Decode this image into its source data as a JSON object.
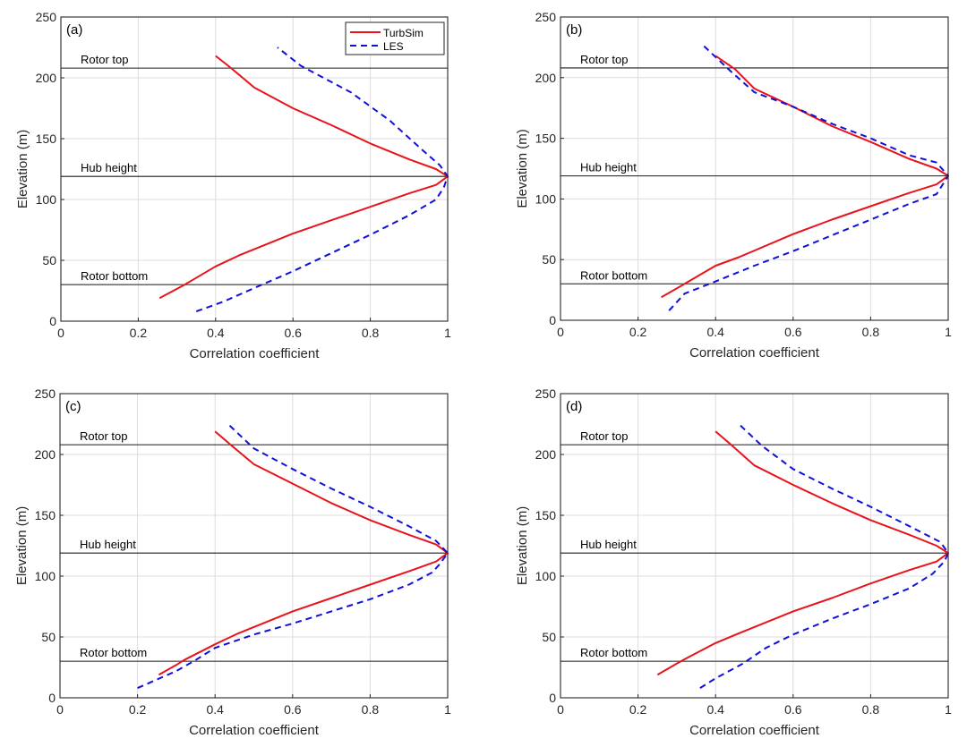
{
  "chart_data": [
    {
      "type": "line",
      "panel_label": "(a)",
      "xlabel": "Correlation  coefficient",
      "ylabel": "Elevation (m)",
      "xlim": [
        0,
        1
      ],
      "ylim": [
        0,
        250
      ],
      "xticks": [
        0,
        0.2,
        0.4,
        0.6,
        0.8,
        1
      ],
      "xtick_labels": [
        "0",
        "0.2",
        "0.4",
        "0.6",
        "0.8",
        "1"
      ],
      "yticks": [
        0,
        50,
        100,
        150,
        200,
        250
      ],
      "ytick_labels": [
        "0",
        "50",
        "100",
        "150",
        "200",
        "250"
      ],
      "grid": true,
      "legend": {
        "show": true,
        "placement": "top-right",
        "entries": [
          "TurbSim",
          "LES"
        ]
      },
      "reference_lines": [
        {
          "label": "Rotor top",
          "y": 208
        },
        {
          "label": "Hub height",
          "y": 119
        },
        {
          "label": "Rotor bottom",
          "y": 30
        }
      ],
      "series": [
        {
          "name": "TurbSim",
          "color": "#e8131b",
          "style": "solid",
          "x": [
            0.255,
            0.32,
            0.4,
            0.46,
            0.6,
            0.7,
            0.8,
            0.9,
            0.97,
            1.0,
            0.97,
            0.9,
            0.8,
            0.7,
            0.6,
            0.5,
            0.44,
            0.4
          ],
          "y": [
            19,
            30,
            45,
            54,
            72,
            83,
            94,
            105,
            112,
            119,
            125,
            133,
            146,
            161,
            175,
            192,
            208,
            218
          ]
        },
        {
          "name": "LES",
          "color": "#1010d8",
          "style": "dashed",
          "x": [
            0.35,
            0.42,
            0.52,
            0.6,
            0.7,
            0.8,
            0.9,
            0.97,
            0.99,
            1.0,
            0.98,
            0.93,
            0.85,
            0.75,
            0.62,
            0.56
          ],
          "y": [
            8,
            16,
            30,
            41,
            56,
            71,
            87,
            100,
            110,
            119,
            128,
            142,
            165,
            188,
            210,
            225
          ]
        }
      ]
    },
    {
      "type": "line",
      "panel_label": "(b)",
      "xlabel": "Correlation  coefficient",
      "ylabel": "Elevation (m)",
      "xlim": [
        0,
        1
      ],
      "ylim": [
        0,
        250
      ],
      "xticks": [
        0,
        0.2,
        0.4,
        0.6,
        0.8,
        1
      ],
      "xtick_labels": [
        "0",
        "0.2",
        "0.4",
        "0.6",
        "0.8",
        "1"
      ],
      "yticks": [
        0,
        50,
        100,
        150,
        200,
        250
      ],
      "ytick_labels": [
        "0",
        "50",
        "100",
        "150",
        "200",
        "250"
      ],
      "grid": true,
      "legend": {
        "show": false
      },
      "reference_lines": [
        {
          "label": "Rotor top",
          "y": 208
        },
        {
          "label": "Hub height",
          "y": 119
        },
        {
          "label": "Rotor bottom",
          "y": 30
        }
      ],
      "series": [
        {
          "name": "TurbSim",
          "color": "#e8131b",
          "style": "solid",
          "x": [
            0.26,
            0.32,
            0.4,
            0.46,
            0.6,
            0.7,
            0.8,
            0.9,
            0.97,
            1.0,
            0.97,
            0.9,
            0.8,
            0.7,
            0.6,
            0.5,
            0.45,
            0.4
          ],
          "y": [
            19,
            30,
            45,
            52,
            71,
            83,
            94,
            105,
            112,
            119,
            125,
            133,
            147,
            160,
            176,
            191,
            207,
            218
          ]
        },
        {
          "name": "LES",
          "color": "#1010d8",
          "style": "dashed",
          "x": [
            0.28,
            0.32,
            0.4,
            0.5,
            0.6,
            0.7,
            0.8,
            0.9,
            0.97,
            1.0,
            0.97,
            0.9,
            0.8,
            0.7,
            0.6,
            0.5,
            0.44,
            0.37
          ],
          "y": [
            8,
            22,
            32,
            45,
            57,
            70,
            83,
            96,
            104,
            119,
            130,
            136,
            150,
            162,
            176,
            188,
            205,
            226
          ]
        }
      ]
    },
    {
      "type": "line",
      "panel_label": "(c)",
      "xlabel": "Correlation  coefficient",
      "ylabel": "Elevation (m)",
      "xlim": [
        0,
        1
      ],
      "ylim": [
        0,
        250
      ],
      "xticks": [
        0,
        0.2,
        0.4,
        0.6,
        0.8,
        1
      ],
      "xtick_labels": [
        "0",
        "0.2",
        "0.4",
        "0.6",
        "0.8",
        "1"
      ],
      "yticks": [
        0,
        50,
        100,
        150,
        200,
        250
      ],
      "ytick_labels": [
        "0",
        "50",
        "100",
        "150",
        "200",
        "250"
      ],
      "grid": true,
      "legend": {
        "show": false
      },
      "reference_lines": [
        {
          "label": "Rotor top",
          "y": 208
        },
        {
          "label": "Hub height",
          "y": 119
        },
        {
          "label": "Rotor bottom",
          "y": 30
        }
      ],
      "series": [
        {
          "name": "TurbSim",
          "color": "#e8131b",
          "style": "solid",
          "x": [
            0.255,
            0.3,
            0.32,
            0.4,
            0.46,
            0.6,
            0.7,
            0.8,
            0.9,
            0.97,
            1.0,
            0.97,
            0.9,
            0.8,
            0.7,
            0.6,
            0.5,
            0.44,
            0.4
          ],
          "y": [
            19,
            27,
            31,
            44,
            53,
            71,
            82,
            93,
            104,
            112,
            119,
            126,
            134,
            146,
            160,
            176,
            192,
            208,
            219
          ]
        },
        {
          "name": "LES",
          "color": "#1010d8",
          "style": "dashed",
          "x": [
            0.2,
            0.3,
            0.35,
            0.4,
            0.5,
            0.6,
            0.7,
            0.8,
            0.9,
            0.96,
            0.98,
            1.0,
            0.97,
            0.9,
            0.8,
            0.7,
            0.6,
            0.5,
            0.43
          ],
          "y": [
            8,
            22,
            31,
            41,
            52,
            61,
            71,
            81,
            93,
            103,
            110,
            119,
            129,
            141,
            157,
            172,
            188,
            205,
            226
          ]
        }
      ]
    },
    {
      "type": "line",
      "panel_label": "(d)",
      "xlabel": "Correlation  coefficient",
      "ylabel": "Elevation (m)",
      "xlim": [
        0,
        1
      ],
      "ylim": [
        0,
        250
      ],
      "xticks": [
        0,
        0.2,
        0.4,
        0.6,
        0.8,
        1
      ],
      "xtick_labels": [
        "0",
        "0.2",
        "0.4",
        "0.6",
        "0.8",
        "1"
      ],
      "yticks": [
        0,
        50,
        100,
        150,
        200,
        250
      ],
      "ytick_labels": [
        "0",
        "50",
        "100",
        "150",
        "200",
        "250"
      ],
      "grid": true,
      "legend": {
        "show": false
      },
      "reference_lines": [
        {
          "label": "Rotor top",
          "y": 208
        },
        {
          "label": "Hub height",
          "y": 119
        },
        {
          "label": "Rotor bottom",
          "y": 30
        }
      ],
      "series": [
        {
          "name": "TurbSim",
          "color": "#e8131b",
          "style": "solid",
          "x": [
            0.25,
            0.31,
            0.4,
            0.46,
            0.6,
            0.7,
            0.8,
            0.9,
            0.97,
            1.0,
            0.97,
            0.9,
            0.8,
            0.7,
            0.6,
            0.5,
            0.44,
            0.4
          ],
          "y": [
            19,
            30,
            45,
            53,
            71,
            82,
            94,
            105,
            112,
            119,
            125,
            134,
            146,
            160,
            175,
            191,
            208,
            219
          ]
        },
        {
          "name": "LES",
          "color": "#1010d8",
          "style": "dashed",
          "x": [
            0.36,
            0.4,
            0.47,
            0.53,
            0.6,
            0.7,
            0.8,
            0.9,
            0.96,
            0.99,
            1.0,
            0.98,
            0.9,
            0.8,
            0.7,
            0.6,
            0.52,
            0.46
          ],
          "y": [
            8,
            16,
            28,
            41,
            52,
            65,
            77,
            90,
            102,
            112,
            119,
            128,
            141,
            157,
            172,
            188,
            207,
            225
          ]
        }
      ]
    }
  ]
}
